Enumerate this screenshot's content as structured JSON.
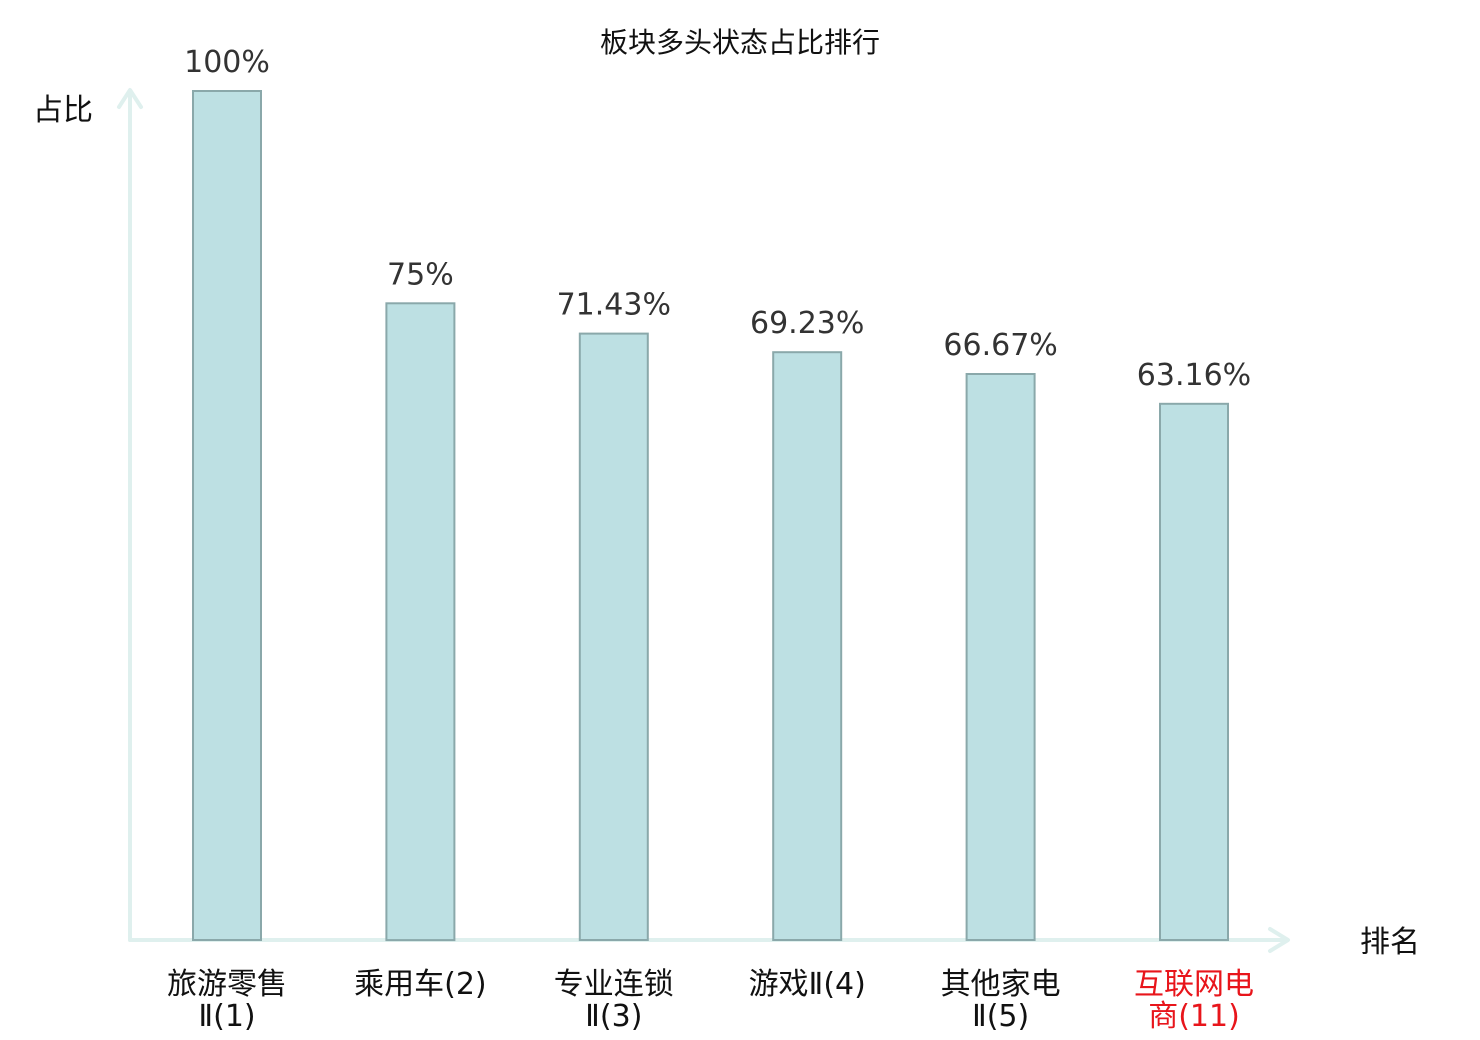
{
  "chart_data": {
    "type": "bar",
    "title": "板块多头状态占比排行",
    "ylabel": "占比",
    "xlabel": "排名",
    "ylim": [
      0,
      100
    ],
    "grid": false,
    "categories": [
      [
        "旅游零售",
        "Ⅱ(1)"
      ],
      [
        "乘用车(2)"
      ],
      [
        "专业连锁",
        "Ⅱ(3)"
      ],
      [
        "游戏Ⅱ(4)"
      ],
      [
        "其他家电",
        "Ⅱ(5)"
      ],
      [
        "互联网电",
        "商(11)"
      ]
    ],
    "values": [
      100,
      75,
      71.43,
      69.23,
      66.67,
      63.16
    ],
    "value_labels": [
      "100%",
      "75%",
      "71.43%",
      "69.23%",
      "66.67%",
      "63.16%"
    ],
    "highlight_index": 5,
    "colors": {
      "bar_fill": "#bde0e3",
      "bar_stroke": "#8aa8aa",
      "axis": "#dff0ee",
      "text": "#111111",
      "value_text": "#333333",
      "highlight": "#e8151b"
    }
  }
}
